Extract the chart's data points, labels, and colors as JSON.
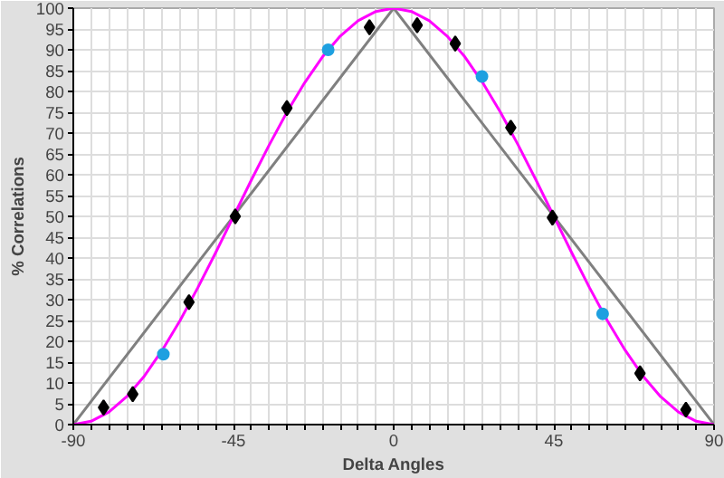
{
  "chart_data": {
    "type": "line",
    "xlabel": "Delta Angles",
    "ylabel": "% Correlations",
    "xlim": [
      -90,
      90
    ],
    "ylim": [
      0,
      100
    ],
    "xticks": [
      -90,
      {
        "value": -85,
        "label": null
      },
      {
        "value": -80,
        "label": null
      },
      {
        "value": -75,
        "label": null
      },
      {
        "value": -70,
        "label": null
      },
      {
        "value": -65,
        "label": null
      },
      {
        "value": -60,
        "label": null
      },
      {
        "value": -55,
        "label": null
      },
      {
        "value": -50,
        "label": null
      },
      -45,
      {
        "value": -40,
        "label": null
      },
      {
        "value": -35,
        "label": null
      },
      {
        "value": -30,
        "label": null
      },
      {
        "value": -25,
        "label": null
      },
      {
        "value": -20,
        "label": null
      },
      {
        "value": -15,
        "label": null
      },
      {
        "value": -10,
        "label": null
      },
      {
        "value": -5,
        "label": null
      },
      0,
      {
        "value": 5,
        "label": null
      },
      {
        "value": 10,
        "label": null
      },
      {
        "value": 15,
        "label": null
      },
      {
        "value": 20,
        "label": null
      },
      {
        "value": 25,
        "label": null
      },
      {
        "value": 30,
        "label": null
      },
      {
        "value": 35,
        "label": null
      },
      {
        "value": 40,
        "label": null
      },
      45,
      {
        "value": 50,
        "label": null
      },
      {
        "value": 55,
        "label": null
      },
      {
        "value": 60,
        "label": null
      },
      {
        "value": 65,
        "label": null
      },
      {
        "value": 70,
        "label": null
      },
      {
        "value": 75,
        "label": null
      },
      {
        "value": 80,
        "label": null
      },
      {
        "value": 85,
        "label": null
      },
      90
    ],
    "yticks": [
      0,
      5,
      10,
      15,
      20,
      25,
      30,
      35,
      40,
      45,
      50,
      55,
      60,
      65,
      70,
      75,
      80,
      85,
      90,
      95,
      100
    ],
    "grid": true,
    "series": [
      {
        "color": "#808080",
        "marker": "none",
        "x": [
          -90,
          0,
          90
        ],
        "values": [
          0,
          100,
          0
        ]
      },
      {
        "color": "#ff00ff",
        "marker": "none",
        "x": [
          -90,
          -85,
          -80,
          -75,
          -70,
          -65,
          -60,
          -55,
          -50,
          -45,
          -40,
          -35,
          -30,
          -25,
          -20,
          -15,
          -10,
          -5,
          0,
          5,
          10,
          15,
          20,
          25,
          30,
          35,
          40,
          45,
          50,
          55,
          60,
          65,
          70,
          75,
          80,
          85,
          90
        ],
        "values": [
          0,
          0.8,
          3.0,
          6.7,
          11.7,
          17.9,
          25,
          32.9,
          41.3,
          50,
          58.7,
          67.1,
          75,
          82.1,
          88.3,
          93.3,
          97.0,
          99.2,
          100,
          99.2,
          97.0,
          93.3,
          88.3,
          82.1,
          75,
          67.1,
          58.7,
          50,
          41.3,
          32.9,
          25,
          17.9,
          11.7,
          6.7,
          3.0,
          0.8,
          0
        ]
      },
      {
        "type": "scatter",
        "color": "#000000",
        "marker": "diamond",
        "x": [
          -81.5,
          -73.3,
          -57.5,
          -30,
          -44.5,
          -6.8,
          6.6,
          17.3,
          32.9,
          44.6,
          69.2,
          82.1
        ],
        "values": [
          4.1,
          7.3,
          29.4,
          76,
          50,
          95.4,
          95.9,
          91.5,
          71.3,
          49.7,
          12.3,
          3.6
        ]
      },
      {
        "type": "scatter",
        "color": "#1ea0e0",
        "marker": "circle",
        "x": [
          -64.7,
          -18.4,
          24.8,
          58.7
        ],
        "values": [
          16.9,
          90,
          83.6,
          26.6
        ]
      }
    ]
  }
}
